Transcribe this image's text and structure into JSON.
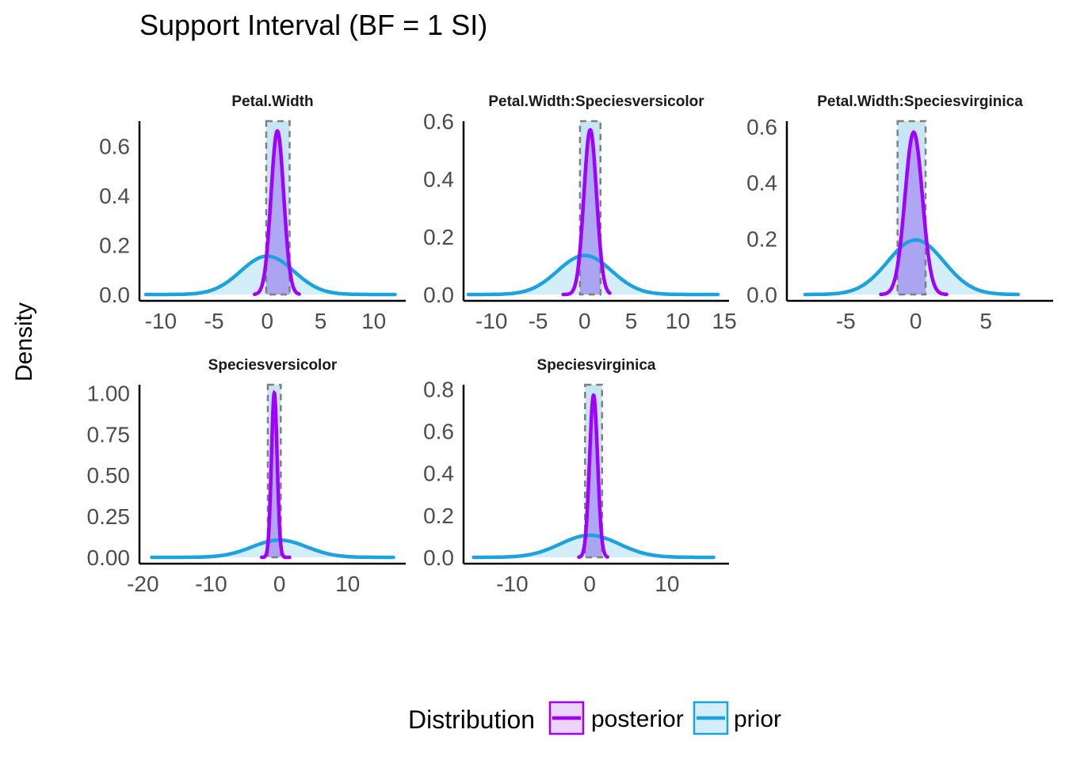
{
  "chart_data": {
    "type": "area",
    "title": "Support Interval (BF = 1 SI)",
    "xlabel": "",
    "ylabel": "Density",
    "grid": false,
    "legend": {
      "title": "Distribution",
      "position": "bottom",
      "entries": [
        {
          "label": "posterior",
          "color": "#A100FF",
          "fill": "#E9D5FF"
        },
        {
          "label": "prior",
          "color": "#1BA2DF",
          "fill": "#D4EEF9"
        }
      ]
    },
    "panels": [
      {
        "name": "Petal.Width",
        "xlim": [
          -12,
          13
        ],
        "ylim": [
          0,
          0.7
        ],
        "xticks": [
          -10,
          -5,
          0,
          5,
          10
        ],
        "xtick_labels": [
          "-10",
          "-5",
          "0",
          "5",
          "10"
        ],
        "yticks": [
          0,
          0.2,
          0.4,
          0.6
        ],
        "ytick_labels": [
          "0.0",
          "0.2",
          "0.4",
          "0.6"
        ],
        "si": [
          -0.1,
          2.1
        ],
        "prior": {
          "mean": 0,
          "sd": 2.5,
          "peak": 0.155,
          "range": [
            -11.4,
            12.0
          ]
        },
        "posterior": {
          "mean": 0.95,
          "sd": 0.6,
          "peak": 0.66,
          "range": [
            -1.2,
            3.0
          ]
        }
      },
      {
        "name": "Petal.Width:Speciesversicolor",
        "xlim": [
          -13,
          15.5
        ],
        "ylim": [
          0,
          0.6
        ],
        "xticks": [
          -10,
          -5,
          0,
          5,
          10,
          15
        ],
        "xtick_labels": [
          "-10",
          "-5",
          "0",
          "5",
          "10",
          "15"
        ],
        "yticks": [
          0,
          0.2,
          0.4,
          0.6
        ],
        "ytick_labels": [
          "0.0",
          "0.2",
          "0.4",
          "0.6"
        ],
        "si": [
          -0.5,
          1.7
        ],
        "prior": {
          "mean": 0,
          "sd": 2.9,
          "peak": 0.135,
          "range": [
            -12.5,
            14.3
          ]
        },
        "posterior": {
          "mean": 0.6,
          "sd": 0.68,
          "peak": 0.57,
          "range": [
            -2.3,
            2.7
          ]
        }
      },
      {
        "name": "Petal.Width:Speciesvirginica",
        "xlim": [
          -9.2,
          9.8
        ],
        "ylim": [
          0,
          0.62
        ],
        "xticks": [
          -5,
          0,
          5
        ],
        "xtick_labels": [
          "-5",
          "0",
          "5"
        ],
        "yticks": [
          0,
          0.2,
          0.4,
          0.6
        ],
        "ytick_labels": [
          "0.0",
          "0.2",
          "0.4",
          "0.6"
        ],
        "si": [
          -1.3,
          0.7
        ],
        "prior": {
          "mean": 0,
          "sd": 2.0,
          "peak": 0.195,
          "range": [
            -7.9,
            7.3
          ]
        },
        "posterior": {
          "mean": -0.15,
          "sd": 0.62,
          "peak": 0.58,
          "range": [
            -2.5,
            2.2
          ]
        }
      },
      {
        "name": "Speciesversicolor",
        "xlim": [
          -20.5,
          18.5
        ],
        "ylim": [
          0,
          1.05
        ],
        "xticks": [
          -20,
          -10,
          0,
          10
        ],
        "xtick_labels": [
          "-20",
          "-10",
          "0",
          "10"
        ],
        "yticks": [
          0,
          0.25,
          0.5,
          0.75,
          1.0
        ],
        "ytick_labels": [
          "0.00",
          "0.25",
          "0.50",
          "0.75",
          "1.00"
        ],
        "si": [
          -1.7,
          0.2
        ],
        "prior": {
          "mean": 0,
          "sd": 4.0,
          "peak": 0.105,
          "range": [
            -18.7,
            16.7
          ]
        },
        "posterior": {
          "mean": -0.75,
          "sd": 0.42,
          "peak": 1.0,
          "range": [
            -2.6,
            1.5
          ]
        }
      },
      {
        "name": "Speciesvirginica",
        "xlim": [
          -16.3,
          18
        ],
        "ylim": [
          0,
          0.82
        ],
        "xticks": [
          -10,
          0,
          10
        ],
        "xtick_labels": [
          "-10",
          "0",
          "10"
        ],
        "yticks": [
          0,
          0.2,
          0.4,
          0.6,
          0.8
        ],
        "ytick_labels": [
          "0.0",
          "0.2",
          "0.4",
          "0.6",
          "0.8"
        ],
        "si": [
          -0.6,
          1.6
        ],
        "prior": {
          "mean": 0,
          "sd": 3.8,
          "peak": 0.105,
          "range": [
            -15.0,
            16.0
          ]
        },
        "posterior": {
          "mean": 0.5,
          "sd": 0.52,
          "peak": 0.77,
          "range": [
            -1.4,
            2.3
          ]
        }
      }
    ]
  }
}
